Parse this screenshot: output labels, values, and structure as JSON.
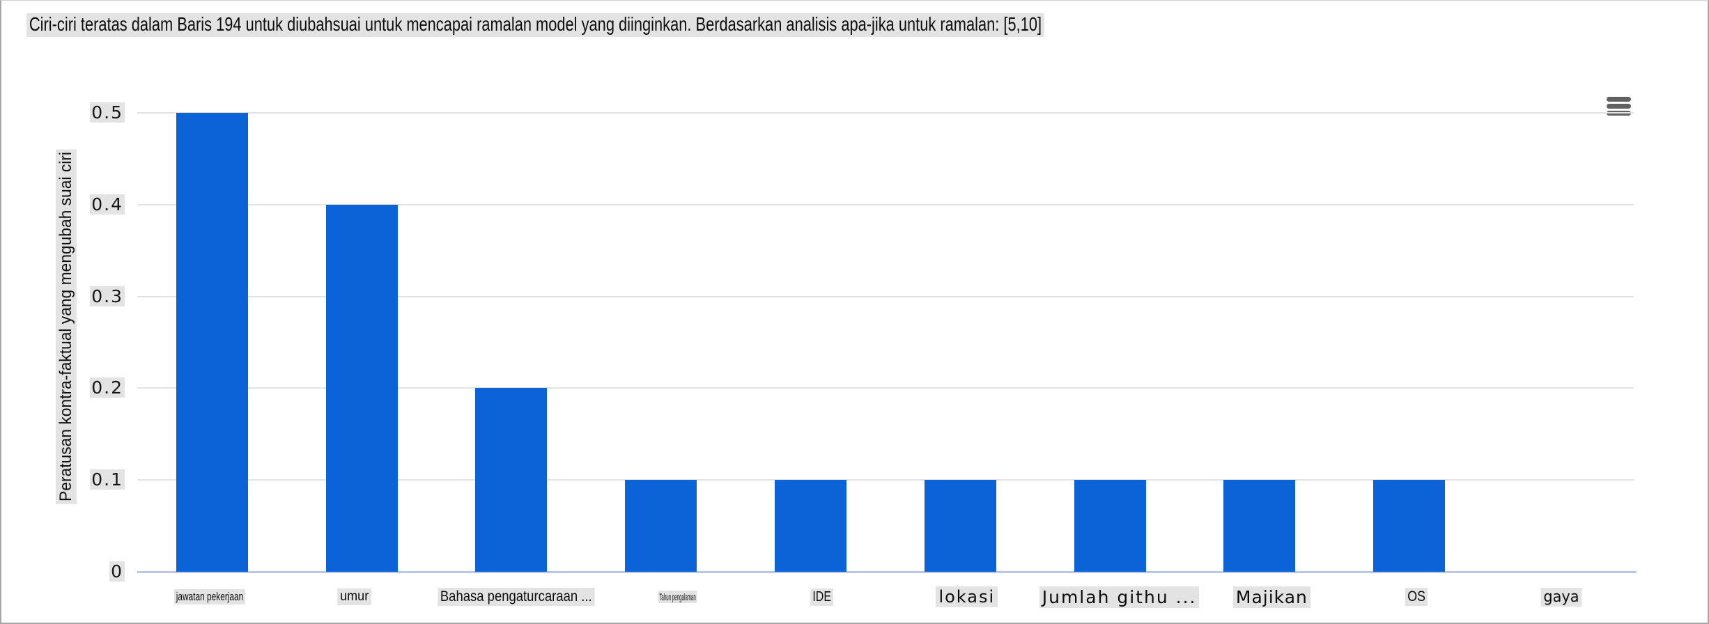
{
  "title": "Ciri-ciri teratas dalam Baris 194 untuk diubahsuai untuk mencapai ramalan model yang diinginkan. Berdasarkan analisis apa-jika untuk ramalan: [5,10]",
  "icons": {
    "menu": "hamburger-menu"
  },
  "chart_data": {
    "type": "bar",
    "title": "Ciri-ciri teratas dalam Baris 194 untuk diubahsuai untuk mencapai ramalan model yang diinginkan. Berdasarkan analisis apa-jika untuk ramalan: [5,10]",
    "categories": [
      "jawatan pekerjaan",
      "umur",
      "Bahasa pengaturcaraan ...",
      "Tahun pengalaman",
      "IDE",
      "lokasi",
      "Jumlah githu ...",
      "Majikan",
      "OS",
      "gaya"
    ],
    "values": [
      0.5,
      0.4,
      0.2,
      0.1,
      0.1,
      0.1,
      0.1,
      0.1,
      0.1,
      0
    ],
    "xlabel": "",
    "ylabel": "Peratusan kontra-faktual yang mengubah suai ciri",
    "ytick_labels": [
      "0.5",
      "0.4",
      "0.3",
      "0.2",
      "0.1",
      "0"
    ],
    "ylim": [
      0,
      0.5
    ],
    "grid": true,
    "legend": false,
    "colors": {
      "bar": "#0c63d8",
      "baseline": "#b9c7ea",
      "gridline": "#e3e3e3",
      "text_highlight": "#e3e3e3",
      "menu_icon": "#616161"
    }
  }
}
